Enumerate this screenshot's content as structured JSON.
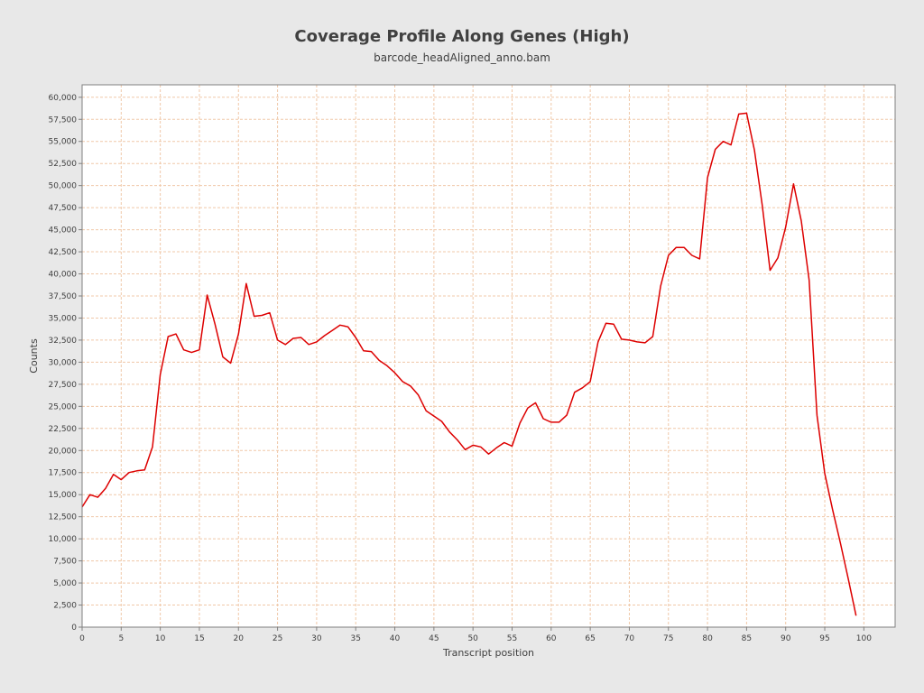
{
  "chart_data": {
    "type": "line",
    "title": "Coverage Profile Along Genes (High)",
    "subtitle": "barcode_headAligned_anno.bam",
    "xlabel": "Transcript position",
    "ylabel": "Counts",
    "xlim": [
      0,
      104
    ],
    "ylim": [
      0,
      61000
    ],
    "xticks": [
      0,
      5,
      10,
      15,
      20,
      25,
      30,
      35,
      40,
      45,
      50,
      55,
      60,
      65,
      70,
      75,
      80,
      85,
      90,
      95,
      100
    ],
    "yticks": [
      0,
      2500,
      5000,
      7500,
      10000,
      12500,
      15000,
      17500,
      20000,
      22500,
      25000,
      27500,
      30000,
      32500,
      35000,
      37500,
      40000,
      42500,
      45000,
      47500,
      50000,
      52500,
      55000,
      57500,
      60000
    ],
    "ytick_labels": [
      "0",
      "2,500",
      "5,000",
      "7,500",
      "10,000",
      "12,500",
      "15,000",
      "17,500",
      "20,000",
      "22,500",
      "25,000",
      "27,500",
      "30,000",
      "32,500",
      "35,000",
      "37,500",
      "40,000",
      "42,500",
      "45,000",
      "47,500",
      "50,000",
      "52,500",
      "55,000",
      "57,500",
      "60,000"
    ],
    "grid": true,
    "legend": "none",
    "series": [
      {
        "color": "#dd0000",
        "x": [
          0,
          1,
          2,
          3,
          4,
          5,
          6,
          7,
          8,
          9,
          10,
          11,
          12,
          13,
          14,
          15,
          16,
          17,
          18,
          19,
          20,
          21,
          22,
          23,
          24,
          25,
          26,
          27,
          28,
          29,
          30,
          31,
          32,
          33,
          34,
          35,
          36,
          37,
          38,
          39,
          40,
          41,
          42,
          43,
          44,
          45,
          46,
          47,
          48,
          49,
          50,
          51,
          52,
          53,
          54,
          55,
          56,
          57,
          58,
          59,
          60,
          61,
          62,
          63,
          64,
          65,
          66,
          67,
          68,
          69,
          70,
          71,
          72,
          73,
          74,
          75,
          76,
          77,
          78,
          79,
          80,
          81,
          82,
          83,
          84,
          85,
          86,
          87,
          88,
          89,
          90,
          91,
          92,
          93,
          94,
          95,
          96,
          97,
          98,
          99
        ],
        "y": [
          13600,
          15000,
          14700,
          15700,
          17300,
          16700,
          17500,
          17700,
          17800,
          20400,
          28600,
          32900,
          33200,
          31400,
          31100,
          31400,
          37600,
          34300,
          30600,
          29900,
          33200,
          38900,
          35200,
          35300,
          35600,
          32500,
          32000,
          32700,
          32800,
          32000,
          32300,
          33000,
          33600,
          34200,
          34000,
          32800,
          31300,
          31200,
          30200,
          29600,
          28800,
          27800,
          27300,
          26300,
          24500,
          23900,
          23300,
          22100,
          21200,
          20100,
          20600,
          20400,
          19600,
          20300,
          20900,
          20500,
          23100,
          24800,
          25400,
          23600,
          23200,
          23200,
          24000,
          26600,
          27100,
          27800,
          32300,
          34400,
          34300,
          32600,
          32500,
          32300,
          32200,
          32900,
          38600,
          42100,
          43000,
          43000,
          42100,
          41700,
          50900,
          54100,
          55000,
          54600,
          58100,
          58200,
          54000,
          47800,
          40400,
          41800,
          45300,
          50200,
          46000,
          39300,
          24000,
          17400,
          13300,
          9500,
          5500,
          1300
        ]
      }
    ]
  }
}
